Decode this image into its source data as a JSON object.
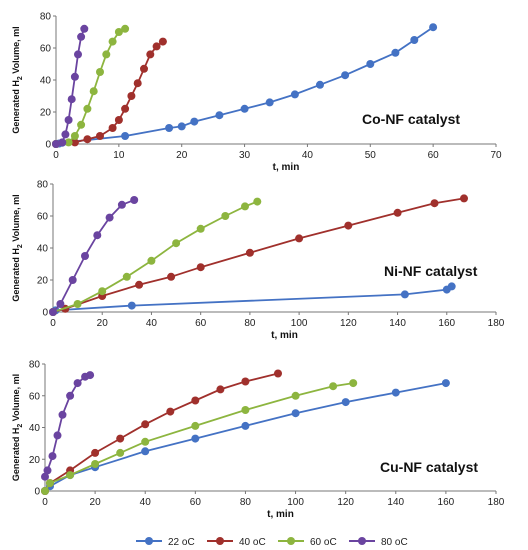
{
  "colors": {
    "s22": "#4472C4",
    "s40": "#A0302C",
    "s60": "#8DB53F",
    "s80": "#6A44A0"
  },
  "legend": {
    "position": "bottom-center"
  },
  "chart_data": [
    {
      "type": "line",
      "annotation": "Co-NF catalyst",
      "xlabel": "t, min",
      "ylabel": "Generated H2 Volume, ml",
      "xlim": [
        0,
        70
      ],
      "ylim": [
        0,
        80
      ],
      "xticks": [
        0,
        10,
        20,
        30,
        40,
        50,
        60,
        70
      ],
      "yticks": [
        0,
        20,
        40,
        60,
        80
      ],
      "grid": false,
      "series": [
        {
          "name": "22 oC",
          "color": "#4472C4",
          "points": [
            [
              0,
              0
            ],
            [
              0.5,
              0.3
            ],
            [
              1,
              0.8
            ],
            [
              11,
              5
            ],
            [
              18,
              10
            ],
            [
              20,
              11
            ],
            [
              22,
              14
            ],
            [
              26,
              18
            ],
            [
              30,
              22
            ],
            [
              34,
              26
            ],
            [
              38,
              31
            ],
            [
              42,
              37
            ],
            [
              46,
              43
            ],
            [
              50,
              50
            ],
            [
              54,
              57
            ],
            [
              57,
              65
            ],
            [
              60,
              73
            ]
          ]
        },
        {
          "name": "40 oC",
          "color": "#A0302C",
          "points": [
            [
              0,
              0
            ],
            [
              3,
              1
            ],
            [
              5,
              3
            ],
            [
              7,
              5
            ],
            [
              9,
              10
            ],
            [
              10,
              15
            ],
            [
              11,
              22
            ],
            [
              12,
              30
            ],
            [
              13,
              38
            ],
            [
              14,
              47
            ],
            [
              15,
              56
            ],
            [
              16,
              61
            ],
            [
              17,
              64
            ]
          ]
        },
        {
          "name": "60 oC",
          "color": "#8DB53F",
          "points": [
            [
              0,
              0
            ],
            [
              2,
              1
            ],
            [
              3,
              5
            ],
            [
              4,
              12
            ],
            [
              5,
              22
            ],
            [
              6,
              33
            ],
            [
              7,
              45
            ],
            [
              8,
              56
            ],
            [
              9,
              64
            ],
            [
              10,
              70
            ],
            [
              11,
              72
            ]
          ]
        },
        {
          "name": "80 oC",
          "color": "#6A44A0",
          "points": [
            [
              0,
              0
            ],
            [
              1,
              1
            ],
            [
              1.5,
              6
            ],
            [
              2,
              15
            ],
            [
              2.5,
              28
            ],
            [
              3,
              42
            ],
            [
              3.5,
              56
            ],
            [
              4,
              67
            ],
            [
              4.5,
              72
            ]
          ]
        }
      ]
    },
    {
      "type": "line",
      "annotation": "Ni-NF catalyst",
      "xlabel": "t, min",
      "ylabel": "Generated H2 Volume, ml",
      "xlim": [
        0,
        180
      ],
      "ylim": [
        0,
        80
      ],
      "xticks": [
        0,
        20,
        40,
        60,
        80,
        100,
        120,
        140,
        160,
        180
      ],
      "yticks": [
        0,
        20,
        40,
        60,
        80
      ],
      "grid": false,
      "series": [
        {
          "name": "22 oC",
          "color": "#4472C4",
          "points": [
            [
              0,
              0
            ],
            [
              1,
              1
            ],
            [
              32,
              4
            ],
            [
              143,
              11
            ],
            [
              160,
              14
            ],
            [
              162,
              16
            ]
          ]
        },
        {
          "name": "40 oC",
          "color": "#A0302C",
          "points": [
            [
              0,
              0
            ],
            [
              5,
              2
            ],
            [
              20,
              10
            ],
            [
              35,
              17
            ],
            [
              48,
              22
            ],
            [
              60,
              28
            ],
            [
              80,
              37
            ],
            [
              100,
              46
            ],
            [
              120,
              54
            ],
            [
              140,
              62
            ],
            [
              155,
              68
            ],
            [
              167,
              71
            ]
          ]
        },
        {
          "name": "60 oC",
          "color": "#8DB53F",
          "points": [
            [
              0,
              0
            ],
            [
              10,
              5
            ],
            [
              20,
              13
            ],
            [
              30,
              22
            ],
            [
              40,
              32
            ],
            [
              50,
              43
            ],
            [
              60,
              52
            ],
            [
              70,
              60
            ],
            [
              78,
              66
            ],
            [
              83,
              69
            ]
          ]
        },
        {
          "name": "80 oC",
          "color": "#6A44A0",
          "points": [
            [
              0,
              0
            ],
            [
              3,
              5
            ],
            [
              8,
              20
            ],
            [
              13,
              35
            ],
            [
              18,
              48
            ],
            [
              23,
              59
            ],
            [
              28,
              67
            ],
            [
              33,
              70
            ]
          ]
        }
      ]
    },
    {
      "type": "line",
      "annotation": "Cu-NF catalyst",
      "xlabel": "t, min",
      "ylabel": "Generated H2 Volume, ml",
      "xlim": [
        0,
        180
      ],
      "ylim": [
        0,
        80
      ],
      "xticks": [
        0,
        20,
        40,
        60,
        80,
        100,
        120,
        140,
        160,
        180
      ],
      "yticks": [
        0,
        20,
        40,
        60,
        80
      ],
      "grid": false,
      "series": [
        {
          "name": "22 oC",
          "color": "#4472C4",
          "points": [
            [
              0,
              0
            ],
            [
              2,
              3
            ],
            [
              10,
              10
            ],
            [
              20,
              15
            ],
            [
              40,
              25
            ],
            [
              60,
              33
            ],
            [
              80,
              41
            ],
            [
              100,
              49
            ],
            [
              120,
              56
            ],
            [
              140,
              62
            ],
            [
              160,
              68
            ]
          ]
        },
        {
          "name": "40 oC",
          "color": "#A0302C",
          "points": [
            [
              0,
              0
            ],
            [
              2,
              5
            ],
            [
              10,
              13
            ],
            [
              20,
              24
            ],
            [
              30,
              33
            ],
            [
              40,
              42
            ],
            [
              50,
              50
            ],
            [
              60,
              57
            ],
            [
              70,
              64
            ],
            [
              80,
              69
            ],
            [
              93,
              74
            ]
          ]
        },
        {
          "name": "60 oC",
          "color": "#8DB53F",
          "points": [
            [
              0,
              0
            ],
            [
              2,
              5
            ],
            [
              10,
              10
            ],
            [
              20,
              17
            ],
            [
              30,
              24
            ],
            [
              40,
              31
            ],
            [
              60,
              41
            ],
            [
              80,
              51
            ],
            [
              100,
              60
            ],
            [
              115,
              66
            ],
            [
              123,
              68
            ]
          ]
        },
        {
          "name": "80 oC",
          "color": "#6A44A0",
          "points": [
            [
              0,
              9
            ],
            [
              1,
              13
            ],
            [
              3,
              22
            ],
            [
              5,
              35
            ],
            [
              7,
              48
            ],
            [
              10,
              60
            ],
            [
              13,
              68
            ],
            [
              16,
              72
            ],
            [
              18,
              73
            ]
          ]
        }
      ]
    }
  ]
}
